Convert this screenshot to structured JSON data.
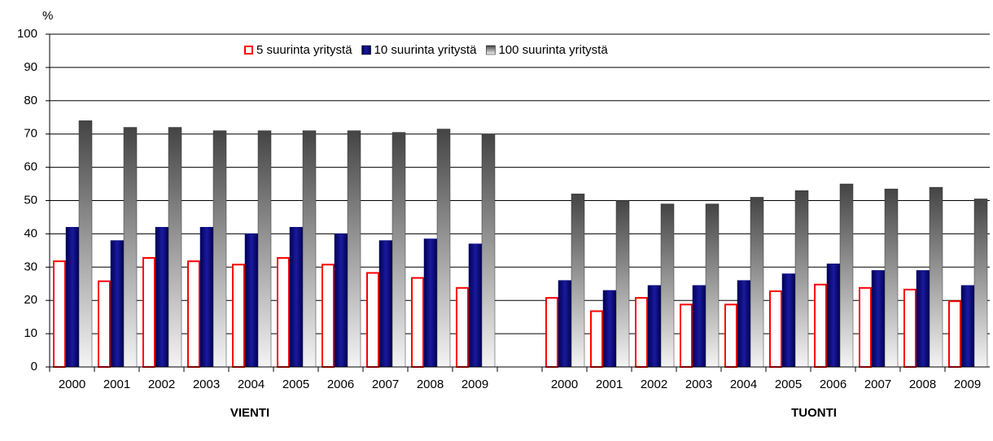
{
  "chart_data": {
    "type": "bar",
    "y_label": "%",
    "categories": [
      "2000",
      "2001",
      "2002",
      "2003",
      "2004",
      "2005",
      "2006",
      "2007",
      "2008",
      "2009",
      null,
      "2000",
      "2001",
      "2002",
      "2003",
      "2004",
      "2005",
      "2006",
      "2007",
      "2008",
      "2009"
    ],
    "series": [
      {
        "name": "5 suurinta yritystä",
        "color": "#ff0000",
        "values": [
          32,
          26,
          33,
          32,
          31,
          33,
          31,
          28.5,
          27,
          24,
          null,
          21,
          17,
          21,
          19,
          19,
          23,
          25,
          24,
          23.5,
          20
        ]
      },
      {
        "name": "10 suurinta yritystä",
        "color": "#000080",
        "values": [
          42,
          38,
          42,
          42,
          40,
          42,
          40,
          38,
          38.5,
          37,
          null,
          26,
          23,
          24.5,
          24.5,
          26,
          28,
          31,
          29,
          29,
          24.5
        ]
      },
      {
        "name": "100 suurinta yritystä",
        "color": "#808080",
        "values": [
          74,
          72,
          72,
          71,
          71,
          71,
          71,
          70.5,
          71.5,
          70,
          null,
          52,
          50,
          49,
          49,
          51,
          53,
          55,
          53.5,
          54,
          50.5
        ]
      }
    ],
    "annotations": [
      {
        "text": "VIENTI"
      },
      {
        "text": "TUONTI"
      }
    ],
    "ylim": [
      0,
      100
    ],
    "yticks": [
      0,
      10,
      20,
      30,
      40,
      50,
      60,
      70,
      80,
      90,
      100
    ],
    "grid": true,
    "legend": "top"
  }
}
